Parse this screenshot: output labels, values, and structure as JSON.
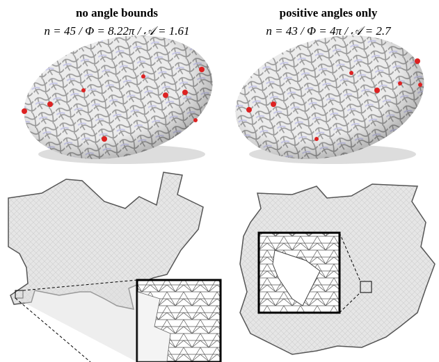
{
  "panels": [
    {
      "title": "no angle bounds",
      "caption": "n = 45 / Φ = 8.22π / 𝒜 = 1.61"
    },
    {
      "title": "positive angles only",
      "caption": "n = 43 / Φ = 4π / 𝒜 = 2.7"
    }
  ]
}
